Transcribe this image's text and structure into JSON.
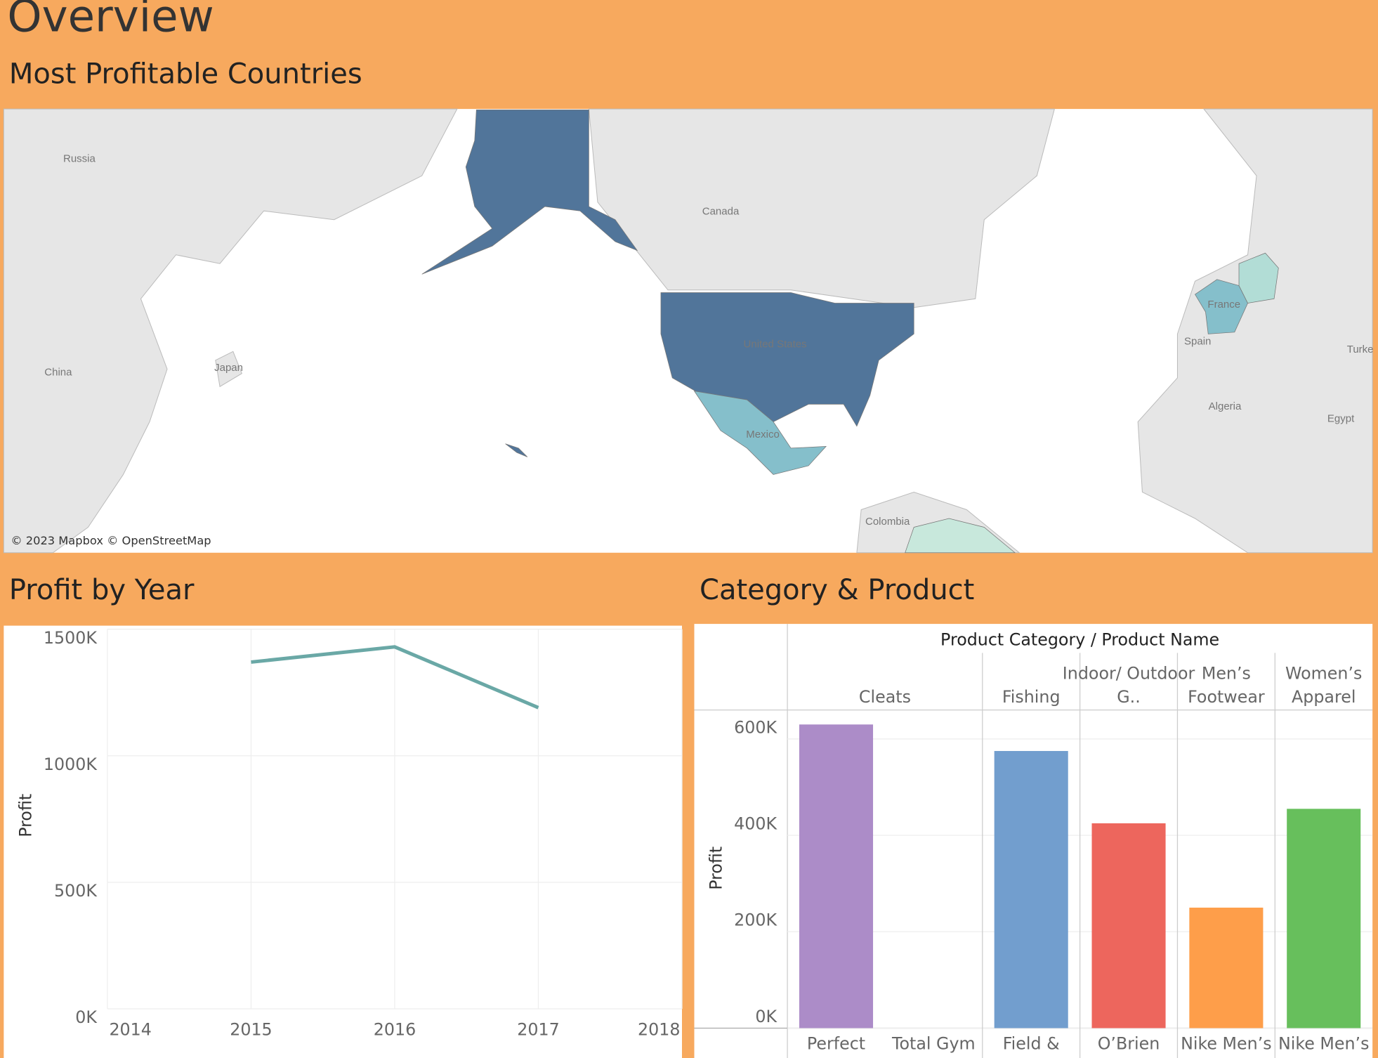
{
  "title": "Overview",
  "chart_data": [
    {
      "type": "map",
      "title": "Most Profitable Countries",
      "labels": [
        "Russia",
        "Canada",
        "China",
        "Japan",
        "United States",
        "Mexico",
        "France",
        "Spain",
        "Turke",
        "Algeria",
        "Egypt",
        "Colombia"
      ],
      "attribution": "© 2023 Mapbox © OpenStreetMap"
    },
    {
      "type": "line",
      "title": "Profit by Year",
      "y_label": "Profit",
      "x": [
        2015,
        2016,
        2017
      ],
      "values": [
        1370000,
        1430000,
        1190000
      ],
      "color": "#6aa8a6",
      "xlim": [
        2014,
        2018
      ],
      "xticks": [
        2014,
        2015,
        2016,
        2017,
        2018
      ],
      "ylim": [
        0,
        1500000
      ],
      "yticks": [
        {
          "value": 0,
          "label": "0K"
        },
        {
          "value": 500000,
          "label": "500K"
        },
        {
          "value": 1000000,
          "label": "1000K"
        },
        {
          "value": 1500000,
          "label": "1500K"
        }
      ],
      "grid": true
    },
    {
      "type": "bar",
      "title": "Category & Product",
      "header": "Product Category  /  Product Name",
      "y_label": "Profit",
      "groups": [
        {
          "name": "Cleats",
          "categories": [
            "Perfect",
            "Total Gym"
          ],
          "values": [
            630000,
            null
          ],
          "colors": [
            "#ac8cc8",
            "#ac8cc8"
          ]
        },
        {
          "name": "Fishing",
          "categories": [
            "Field &"
          ],
          "values": [
            575000
          ],
          "colors": [
            "#729ece"
          ]
        },
        {
          "name": "Indoor/ Outdoor G..",
          "categories": [
            "O’Brien"
          ],
          "values": [
            425000
          ],
          "colors": [
            "#ed665d"
          ]
        },
        {
          "name": "Men’s Footwear",
          "categories": [
            "Nike Men’s"
          ],
          "values": [
            250000
          ],
          "colors": [
            "#fe9e4a"
          ]
        },
        {
          "name": "Women’s Apparel",
          "categories": [
            "Nike Men’s"
          ],
          "values": [
            455000
          ],
          "colors": [
            "#67bf5c"
          ]
        }
      ],
      "ylim": [
        0,
        660000
      ],
      "yticks": [
        {
          "value": 0,
          "label": "0K"
        },
        {
          "value": 200000,
          "label": "200K"
        },
        {
          "value": 400000,
          "label": "400K"
        },
        {
          "value": 600000,
          "label": "600K"
        }
      ],
      "grid": true
    }
  ]
}
